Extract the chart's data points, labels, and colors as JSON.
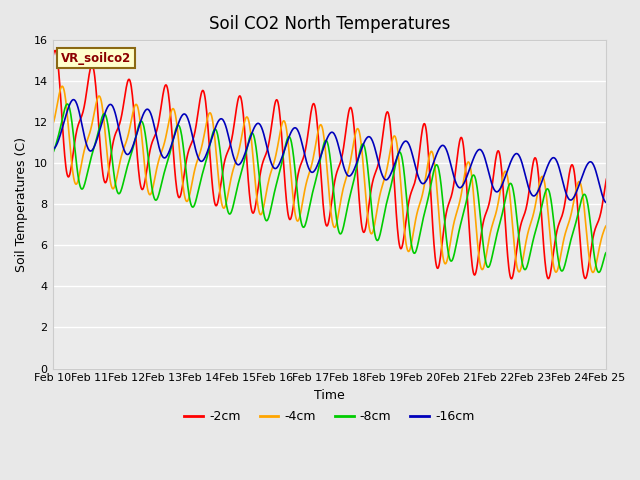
{
  "title": "Soil CO2 North Temperatures",
  "xlabel": "Time",
  "ylabel": "Soil Temperatures (C)",
  "ylim": [
    0,
    16
  ],
  "xlim": [
    0,
    15
  ],
  "background_color": "#e8e8e8",
  "plot_bg_color": "#ebebeb",
  "xtick_labels": [
    "Feb 10",
    "Feb 11",
    "Feb 12",
    "Feb 13",
    "Feb 14",
    "Feb 15",
    "Feb 16",
    "Feb 17",
    "Feb 18",
    "Feb 19",
    "Feb 20",
    "Feb 21",
    "Feb 22",
    "Feb 23",
    "Feb 24",
    "Feb 25"
  ],
  "ytick_values": [
    0,
    2,
    4,
    6,
    8,
    10,
    12,
    14,
    16
  ],
  "legend_label": "VR_soilco2",
  "series_labels": [
    "-2cm",
    "-4cm",
    "-8cm",
    "-16cm"
  ],
  "series_colors": [
    "#ff0000",
    "#ffa500",
    "#00cc00",
    "#0000bb"
  ],
  "series_linewidths": [
    1.2,
    1.2,
    1.2,
    1.2
  ],
  "x_days": 15,
  "num_points": 1000
}
